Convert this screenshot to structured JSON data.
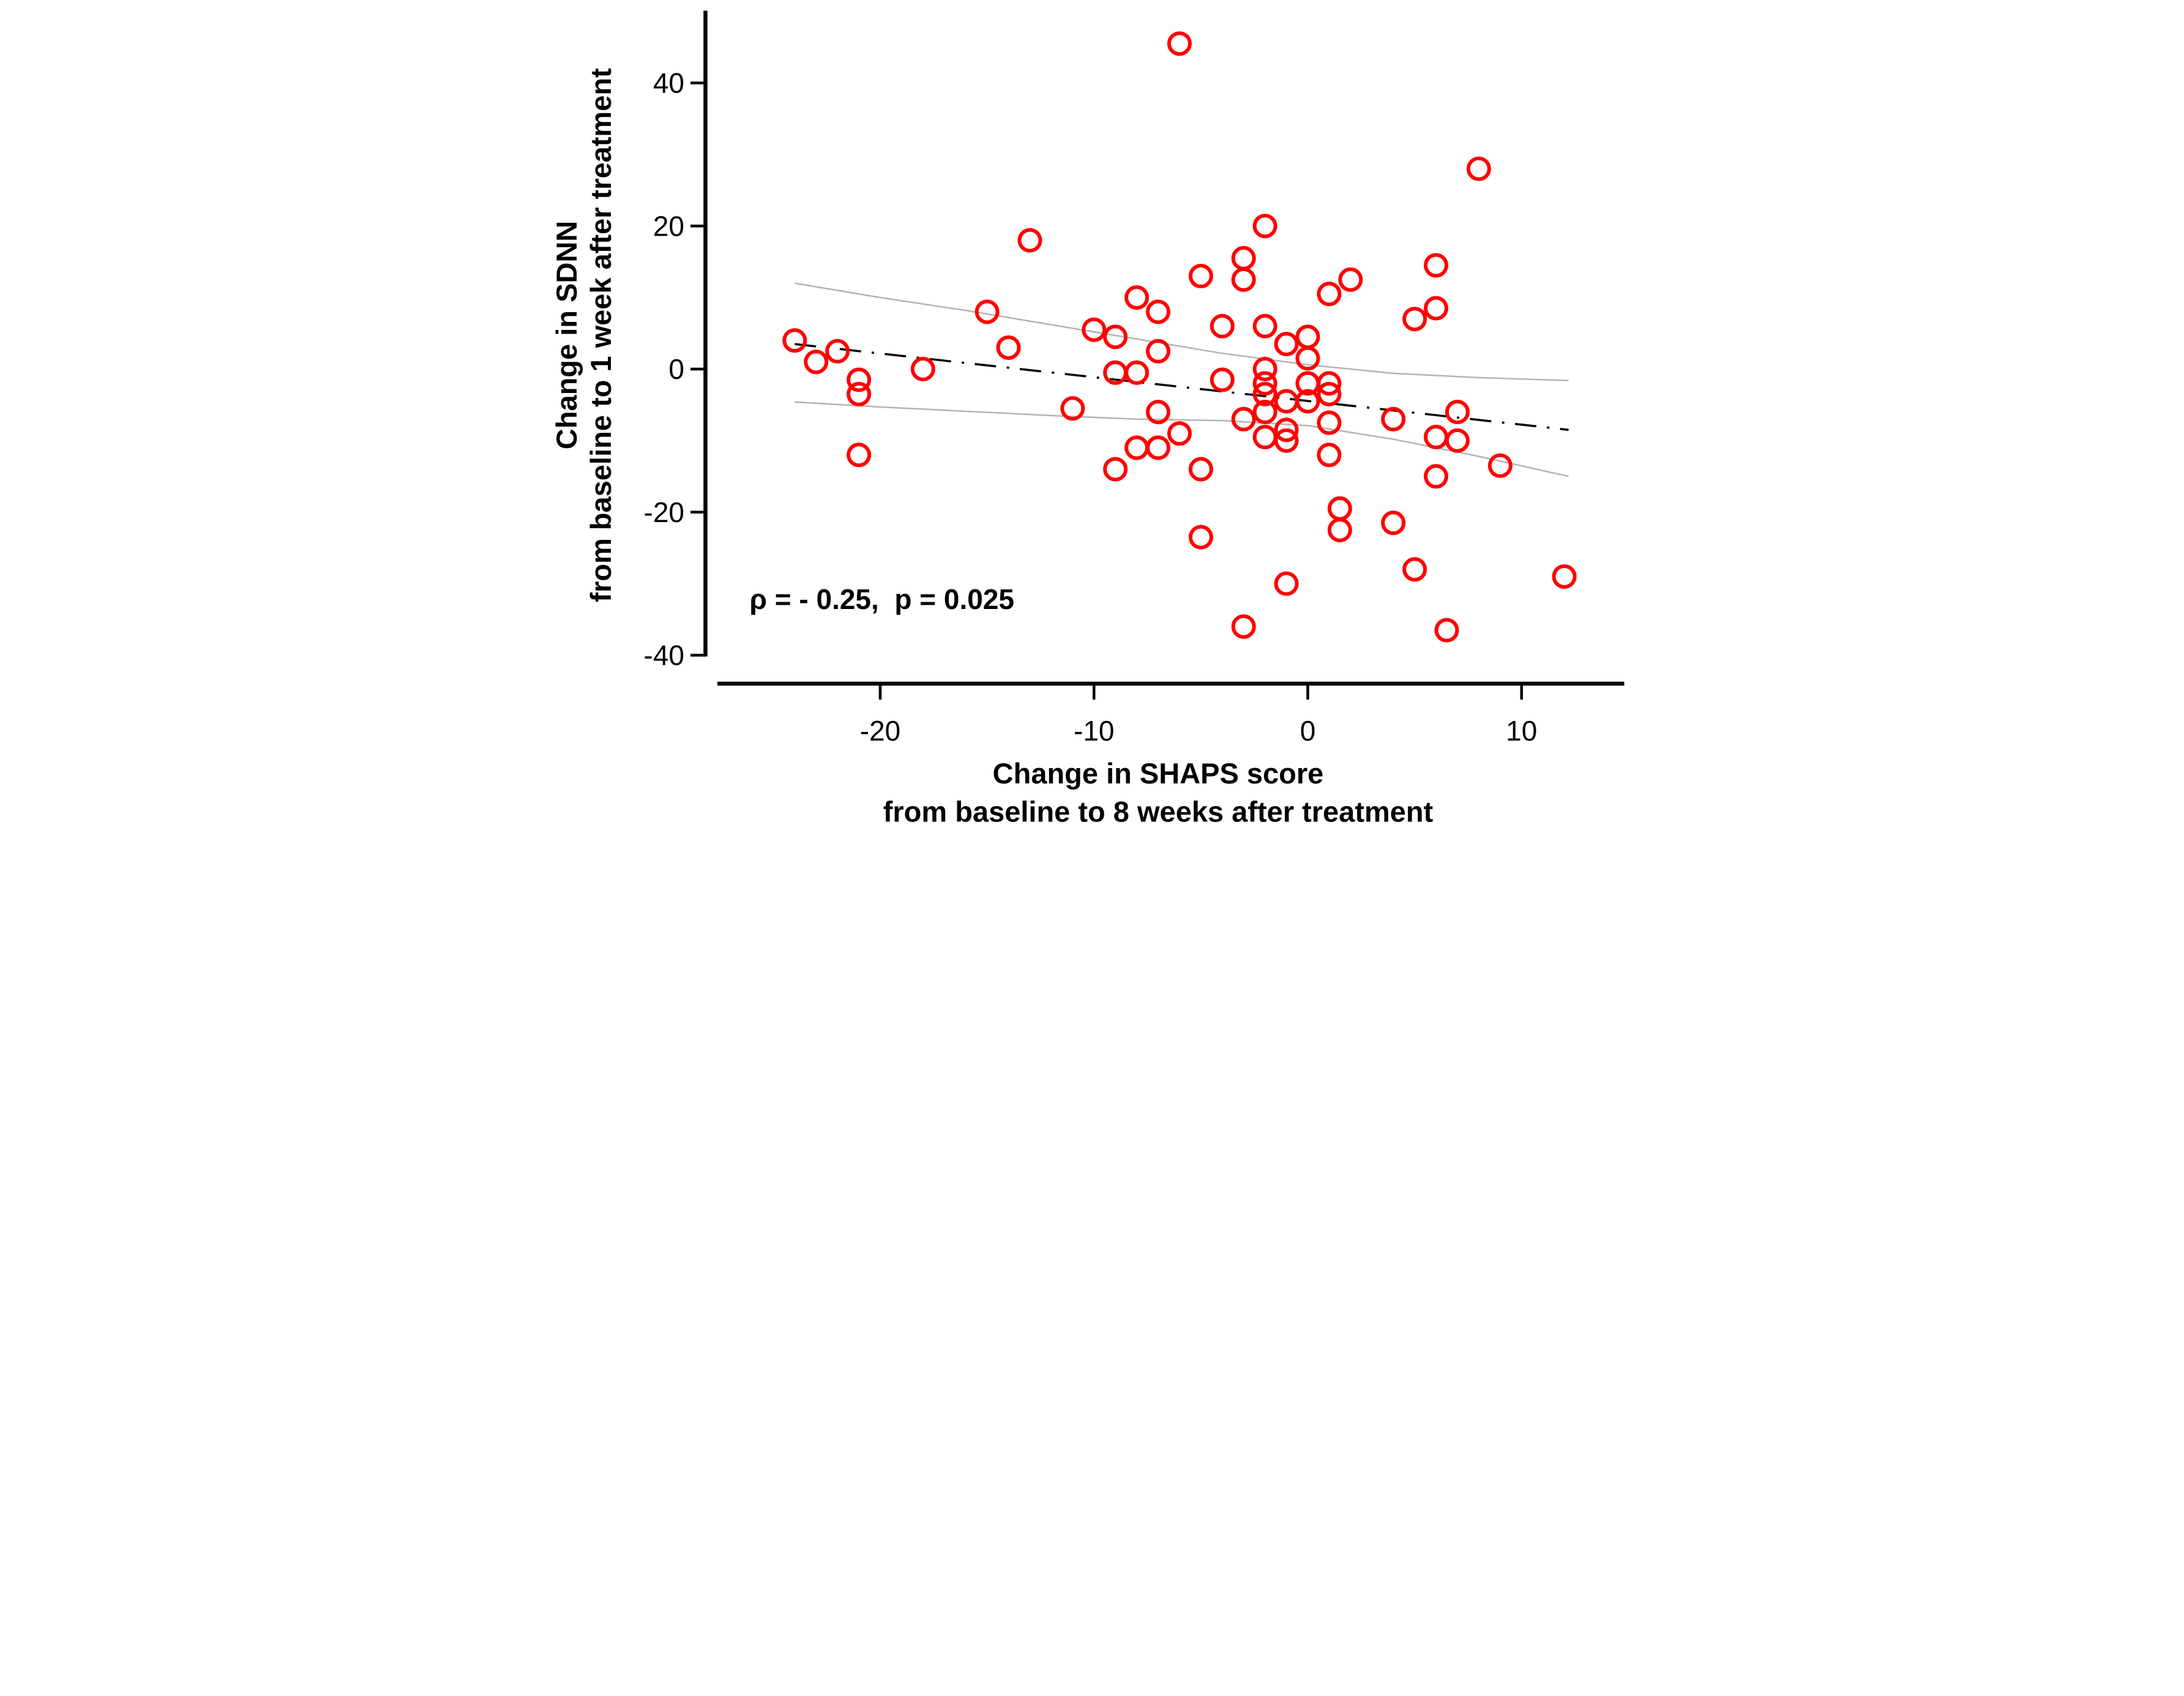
{
  "figure": {
    "background": "#ffffff",
    "annotation_text": "ρ = - 0.25,  p = 0.025"
  },
  "chart_data": {
    "type": "scatter",
    "title": "",
    "xlabel_line1": "Change in SHAPS score",
    "xlabel_line2": "from baseline to 8 weeks after treatment",
    "ylabel_line1": "Change in SDNN",
    "ylabel_line2": "from baseline to 1 week after treatment",
    "annotation": "ρ = - 0.25,  p = 0.025",
    "rho": -0.25,
    "p_value": 0.025,
    "xlim": [
      -27.6,
      14.8
    ],
    "ylim": [
      -40,
      50
    ],
    "grid": false,
    "legend": "none",
    "x_ticks": [
      {
        "value": -20,
        "label": "-20"
      },
      {
        "value": -10,
        "label": "-10"
      },
      {
        "value": 0,
        "label": "0"
      },
      {
        "value": 10,
        "label": "10"
      }
    ],
    "y_ticks": [
      {
        "value": 40,
        "label": "40"
      },
      {
        "value": 20,
        "label": "20"
      },
      {
        "value": 0,
        "label": "0"
      },
      {
        "value": -20,
        "label": "-20"
      },
      {
        "value": -40,
        "label": "-40"
      }
    ],
    "marker": {
      "shape": "open-circle",
      "color": "#ff0000"
    },
    "trend_line": {
      "style": "dash-dot",
      "color": "#000000",
      "x1": -24,
      "y1": 3.5,
      "x2": 12.2,
      "y2": -8.5
    },
    "ci_upper": [
      [
        -24,
        12
      ],
      [
        -20,
        10
      ],
      [
        -16,
        8.2
      ],
      [
        -12,
        6.2
      ],
      [
        -8,
        4.2
      ],
      [
        -4,
        2.2
      ],
      [
        0,
        0.6
      ],
      [
        4,
        -0.6
      ],
      [
        8,
        -1.2
      ],
      [
        12.2,
        -1.6
      ]
    ],
    "ci_lower": [
      [
        -24,
        -4.6
      ],
      [
        -20,
        -5.3
      ],
      [
        -16,
        -5.9
      ],
      [
        -12,
        -6.5
      ],
      [
        -8,
        -7.0
      ],
      [
        -4,
        -7.2
      ],
      [
        0,
        -7.9
      ],
      [
        4,
        -9.8
      ],
      [
        8,
        -12.2
      ],
      [
        12.2,
        -15
      ]
    ],
    "ci_color": "#b3b3b3",
    "points": [
      [
        -24,
        4
      ],
      [
        -23,
        1
      ],
      [
        -22,
        2.5
      ],
      [
        -21,
        -1.5
      ],
      [
        -21,
        -3.5
      ],
      [
        -21,
        -12
      ],
      [
        -18,
        0
      ],
      [
        -15,
        8
      ],
      [
        -14,
        3
      ],
      [
        -13,
        18
      ],
      [
        -11,
        -5.5
      ],
      [
        -10,
        5.5
      ],
      [
        -9,
        4.5
      ],
      [
        -9,
        -0.5
      ],
      [
        -9,
        -14
      ],
      [
        -8,
        10
      ],
      [
        -8,
        -0.5
      ],
      [
        -8,
        -11
      ],
      [
        -7,
        8
      ],
      [
        -7,
        2.5
      ],
      [
        -7,
        -6
      ],
      [
        -7,
        -11
      ],
      [
        -6,
        45.5
      ],
      [
        -6,
        -9
      ],
      [
        -5,
        13
      ],
      [
        -5,
        -14
      ],
      [
        -5,
        -23.5
      ],
      [
        -4,
        6
      ],
      [
        -4,
        -1.5
      ],
      [
        -3,
        15.5
      ],
      [
        -3,
        12.5
      ],
      [
        -3,
        -7
      ],
      [
        -3,
        -36
      ],
      [
        -2,
        20
      ],
      [
        -2,
        6
      ],
      [
        -2,
        0
      ],
      [
        -2,
        -2
      ],
      [
        -2,
        -3.5
      ],
      [
        -2,
        -6
      ],
      [
        -2,
        -9.5
      ],
      [
        -1,
        3.5
      ],
      [
        -1,
        -4.5
      ],
      [
        -1,
        -8.5
      ],
      [
        -1,
        -10
      ],
      [
        -1,
        -30
      ],
      [
        0,
        4.5
      ],
      [
        0,
        1.5
      ],
      [
        0,
        -2
      ],
      [
        0,
        -4.5
      ],
      [
        1,
        10.5
      ],
      [
        1,
        -2
      ],
      [
        1,
        -3.5
      ],
      [
        1,
        -7.5
      ],
      [
        1,
        -12
      ],
      [
        1.5,
        -19.5
      ],
      [
        1.5,
        -22.5
      ],
      [
        2,
        12.5
      ],
      [
        4,
        -7
      ],
      [
        4,
        -21.5
      ],
      [
        5,
        7
      ],
      [
        5,
        -28
      ],
      [
        6,
        14.5
      ],
      [
        6,
        8.5
      ],
      [
        6,
        -9.5
      ],
      [
        6,
        -15
      ],
      [
        6.5,
        -36.5
      ],
      [
        7,
        -6
      ],
      [
        7,
        -10
      ],
      [
        8,
        28
      ],
      [
        9,
        -13.5
      ],
      [
        12,
        -29
      ]
    ]
  }
}
